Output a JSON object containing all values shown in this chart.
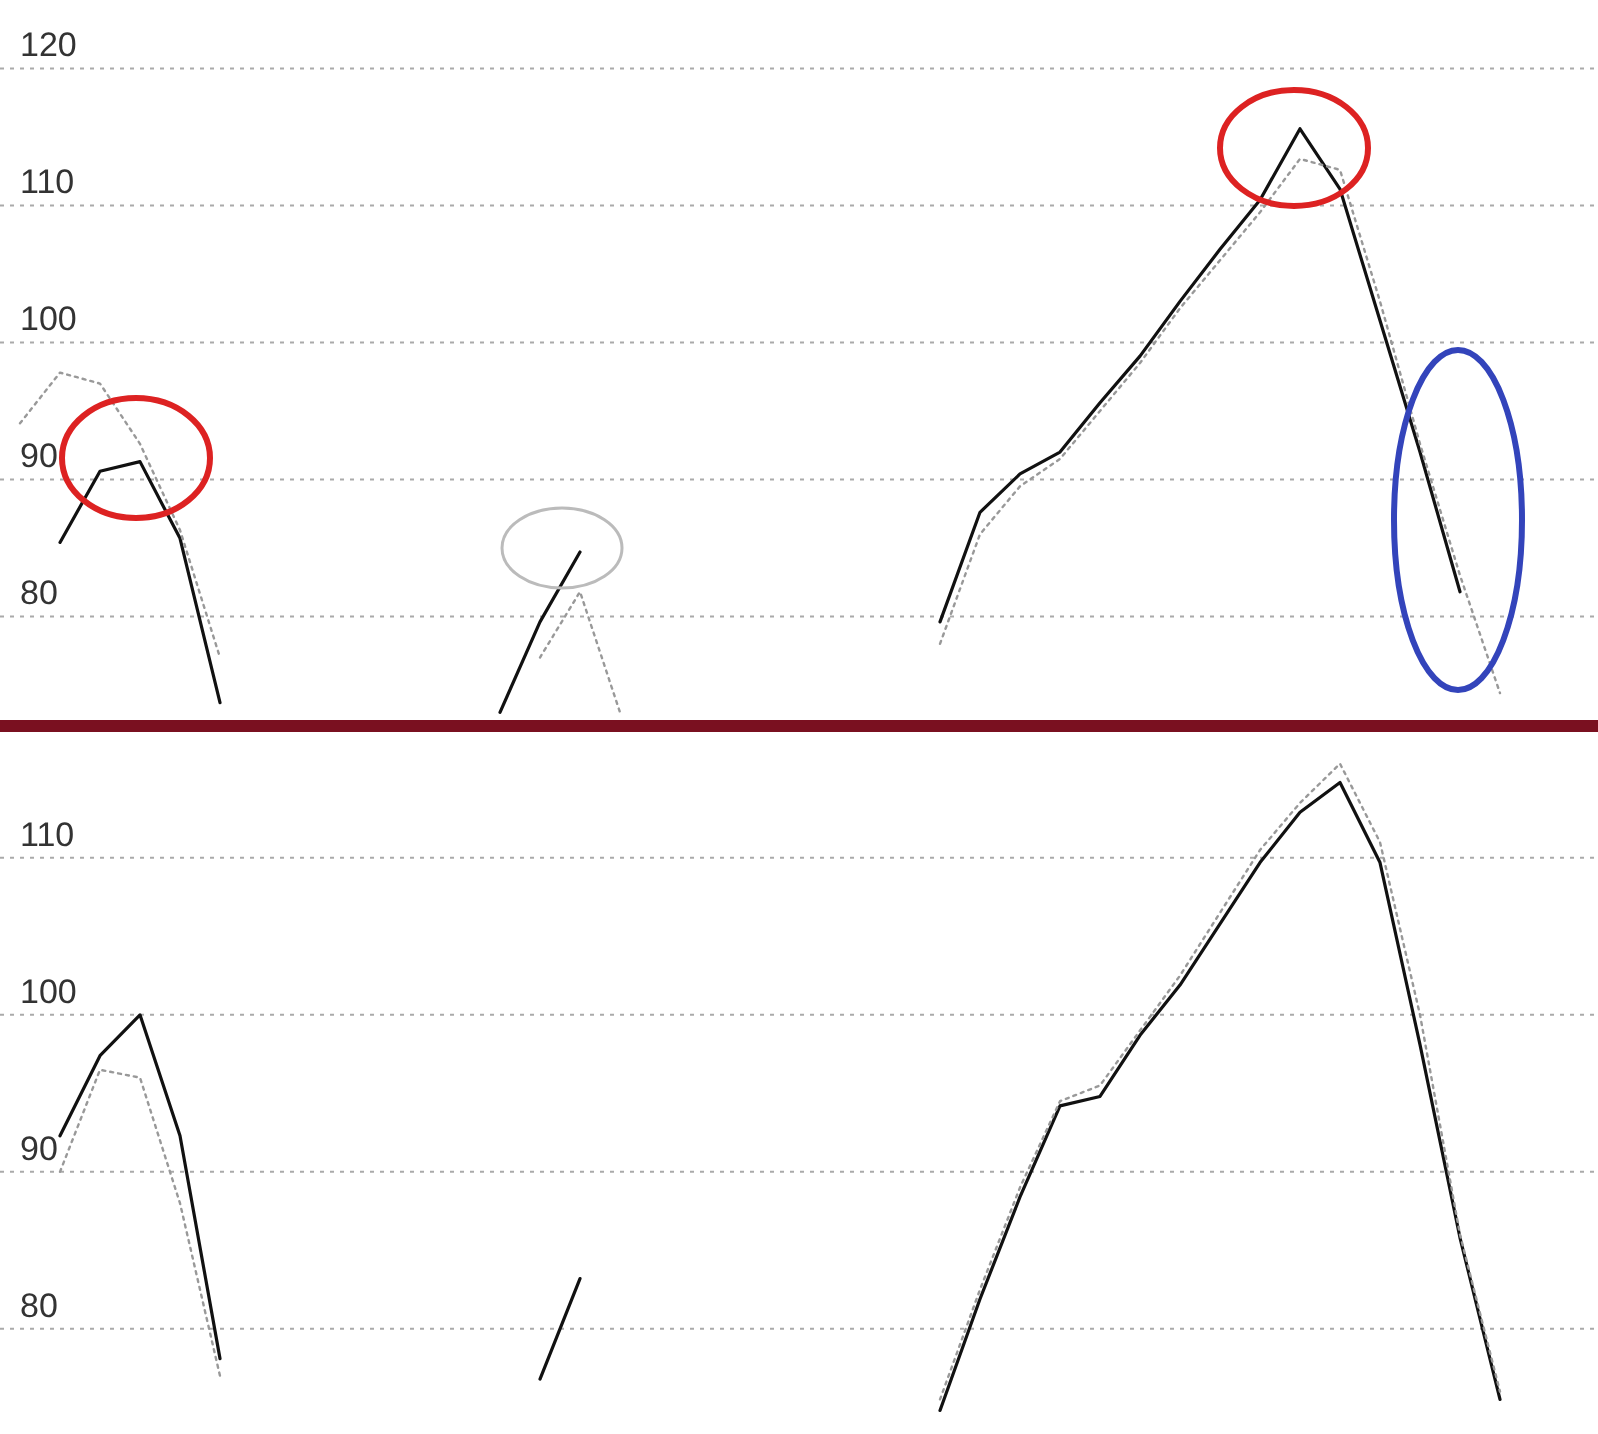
{
  "chart_data": [
    {
      "type": "line",
      "categories": [
        null,
        null,
        null,
        null,
        null,
        null,
        null,
        null,
        null,
        null,
        null,
        null,
        null,
        null,
        null,
        null,
        null,
        null,
        null,
        null,
        null,
        null,
        null,
        null,
        null,
        null,
        null,
        null,
        null,
        null,
        null,
        null,
        null,
        null,
        null,
        null,
        null,
        null,
        null,
        null
      ],
      "series": [
        {
          "color": "#111111",
          "line_style": "solid",
          "values": [
            null,
            85.4,
            90.6,
            91.3,
            85.7,
            73.7,
            null,
            null,
            null,
            null,
            null,
            null,
            73,
            79.6,
            84.7,
            null,
            null,
            null,
            null,
            null,
            null,
            null,
            null,
            79.6,
            87.6,
            90.4,
            92,
            95.6,
            99,
            103,
            106.8,
            110.4,
            115.6,
            111.2,
            101.6,
            92,
            81.8,
            null,
            null,
            null
          ]
        },
        {
          "color": "#999999",
          "line_style": "dotted",
          "values": [
            94.1,
            97.8,
            97,
            92.6,
            86.3,
            77,
            null,
            null,
            null,
            null,
            null,
            null,
            null,
            77,
            81.8,
            73,
            null,
            null,
            null,
            null,
            null,
            null,
            null,
            78,
            86,
            89.5,
            91.5,
            95,
            98.5,
            102.5,
            106,
            109.5,
            113.4,
            112.6,
            103,
            92.6,
            83,
            74.4,
            null,
            null
          ]
        }
      ],
      "ylim": [
        72,
        125
      ],
      "yticks": [
        80,
        90,
        100,
        110,
        120
      ],
      "grid": "y",
      "tick_labels": "y"
    },
    {
      "type": "line",
      "categories": [
        null,
        null,
        null,
        null,
        null,
        null,
        null,
        null,
        null,
        null,
        null,
        null,
        null,
        null,
        null,
        null,
        null,
        null,
        null,
        null,
        null,
        null,
        null,
        null,
        null,
        null,
        null,
        null,
        null,
        null,
        null,
        null,
        null,
        null,
        null,
        null,
        null,
        null,
        null,
        null
      ],
      "series": [
        {
          "color": "#111111",
          "line_style": "solid",
          "values": [
            null,
            92.3,
            97.4,
            100,
            92.3,
            78.1,
            null,
            null,
            null,
            null,
            null,
            null,
            null,
            76.8,
            83.2,
            null,
            null,
            null,
            null,
            null,
            null,
            null,
            null,
            74.8,
            81.9,
            88.4,
            94.2,
            94.8,
            98.7,
            101.9,
            105.8,
            109.7,
            112.9,
            114.8,
            109.7,
            98.1,
            85.8,
            75.5,
            null,
            null
          ]
        },
        {
          "color": "#999999",
          "line_style": "dotted",
          "values": [
            null,
            90,
            96.5,
            96,
            88,
            77,
            null,
            null,
            null,
            null,
            null,
            null,
            null,
            null,
            null,
            null,
            null,
            null,
            null,
            null,
            null,
            null,
            null,
            75.5,
            82.5,
            89,
            94.5,
            95.5,
            99,
            102.5,
            106.5,
            110.5,
            113.5,
            116,
            111,
            100,
            86,
            76,
            null,
            null
          ]
        }
      ],
      "ylim": [
        73.3,
        118.4
      ],
      "yticks": [
        80,
        90,
        100,
        110
      ],
      "grid": "y",
      "tick_labels": "y"
    }
  ]
}
